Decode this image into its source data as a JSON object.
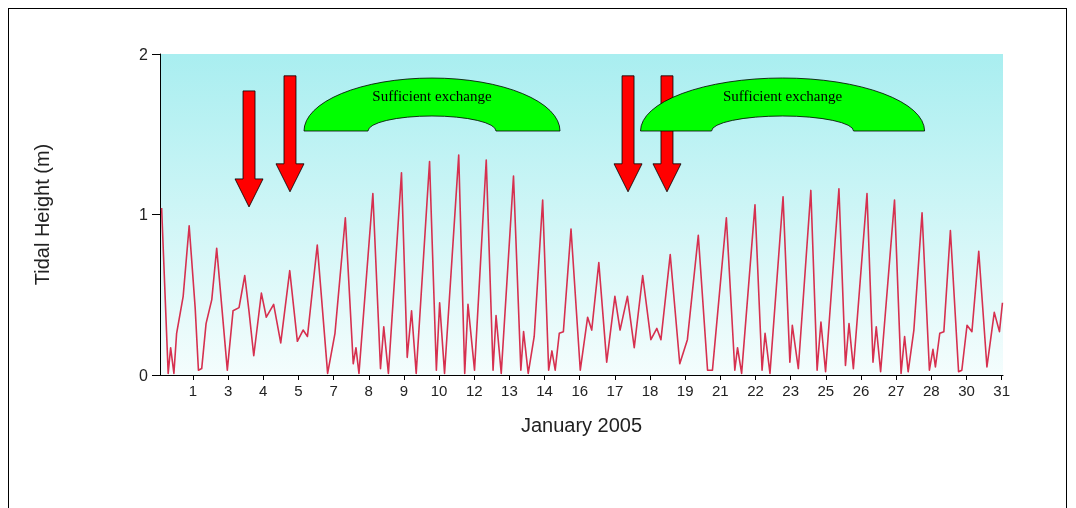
{
  "chart_data": {
    "type": "line",
    "xlabel": "January 2005",
    "ylabel": "Tidal Height (m)",
    "color": "#d6304f",
    "marker": "none",
    "grid": false,
    "xlim": [
      0.17,
      31.1
    ],
    "ylim": [
      0,
      2
    ],
    "yticks": [
      0,
      1,
      2
    ],
    "xticks": [
      {
        "value": 1.38,
        "label": "1"
      },
      {
        "value": 2.67,
        "label": "3"
      },
      {
        "value": 3.96,
        "label": "4"
      },
      {
        "value": 5.25,
        "label": "5"
      },
      {
        "value": 6.54,
        "label": "7"
      },
      {
        "value": 7.83,
        "label": "8"
      },
      {
        "value": 9.12,
        "label": "9"
      },
      {
        "value": 10.41,
        "label": "10"
      },
      {
        "value": 11.7,
        "label": "12"
      },
      {
        "value": 12.99,
        "label": "13"
      },
      {
        "value": 14.28,
        "label": "14"
      },
      {
        "value": 15.57,
        "label": "16"
      },
      {
        "value": 16.86,
        "label": "17"
      },
      {
        "value": 18.15,
        "label": "18"
      },
      {
        "value": 19.44,
        "label": "19"
      },
      {
        "value": 20.73,
        "label": "21"
      },
      {
        "value": 22.02,
        "label": "22"
      },
      {
        "value": 23.31,
        "label": "23"
      },
      {
        "value": 24.6,
        "label": "25"
      },
      {
        "value": 25.89,
        "label": "26"
      },
      {
        "value": 27.18,
        "label": "27"
      },
      {
        "value": 28.47,
        "label": "28"
      },
      {
        "value": 29.76,
        "label": "30"
      },
      {
        "value": 31.05,
        "label": "31"
      }
    ],
    "x": [
      0.23,
      0.47,
      0.56,
      0.68,
      0.78,
      1.02,
      1.24,
      1.46,
      1.58,
      1.7,
      1.86,
      2.07,
      2.25,
      2.44,
      2.64,
      2.85,
      3.07,
      3.28,
      3.44,
      3.61,
      3.89,
      4.07,
      4.34,
      4.6,
      4.93,
      5.21,
      5.42,
      5.58,
      5.94,
      6.32,
      6.59,
      6.97,
      7.26,
      7.36,
      7.47,
      7.98,
      8.26,
      8.38,
      8.55,
      9.03,
      9.24,
      9.4,
      9.57,
      10.06,
      10.31,
      10.43,
      10.61,
      11.13,
      11.35,
      11.47,
      11.71,
      12.14,
      12.39,
      12.5,
      12.69,
      13.14,
      13.41,
      13.51,
      13.68,
      13.9,
      14.21,
      14.43,
      14.55,
      14.67,
      14.82,
      14.97,
      15.25,
      15.59,
      15.86,
      16.01,
      16.27,
      16.56,
      16.86,
      17.05,
      17.32,
      17.57,
      17.88,
      18.18,
      18.4,
      18.55,
      18.89,
      19.24,
      19.52,
      19.92,
      20.26,
      20.44,
      20.95,
      21.26,
      21.36,
      21.51,
      22.0,
      22.26,
      22.37,
      22.55,
      23.03,
      23.28,
      23.37,
      23.59,
      24.05,
      24.28,
      24.42,
      24.59,
      25.08,
      25.32,
      25.45,
      25.61,
      26.11,
      26.33,
      26.45,
      26.61,
      27.12,
      27.36,
      27.49,
      27.62,
      27.83,
      28.13,
      28.4,
      28.53,
      28.62,
      28.78,
      28.93,
      29.17,
      29.47,
      29.59,
      29.78,
      29.96,
      30.21,
      30.51,
      30.78,
      30.97,
      31.08
    ],
    "values": [
      1.04,
      0.01,
      0.17,
      0.01,
      0.26,
      0.49,
      0.93,
      0.42,
      0.03,
      0.04,
      0.32,
      0.47,
      0.79,
      0.42,
      0.03,
      0.4,
      0.42,
      0.62,
      0.39,
      0.12,
      0.51,
      0.36,
      0.44,
      0.2,
      0.65,
      0.21,
      0.28,
      0.24,
      0.81,
      0.01,
      0.26,
      0.98,
      0.07,
      0.17,
      0.01,
      1.13,
      0.04,
      0.3,
      0.01,
      1.26,
      0.11,
      0.4,
      0.01,
      1.33,
      0.03,
      0.45,
      0.01,
      1.37,
      0.01,
      0.44,
      0.03,
      1.34,
      0.03,
      0.37,
      0.01,
      1.24,
      0.03,
      0.27,
      0.01,
      0.24,
      1.09,
      0.03,
      0.15,
      0.03,
      0.26,
      0.27,
      0.91,
      0.03,
      0.36,
      0.28,
      0.7,
      0.08,
      0.49,
      0.28,
      0.49,
      0.17,
      0.62,
      0.22,
      0.29,
      0.22,
      0.75,
      0.07,
      0.22,
      0.87,
      0.03,
      0.03,
      0.98,
      0.03,
      0.17,
      0.01,
      1.06,
      0.03,
      0.26,
      0.01,
      1.11,
      0.08,
      0.31,
      0.04,
      1.15,
      0.03,
      0.33,
      0.02,
      1.16,
      0.06,
      0.32,
      0.04,
      1.13,
      0.08,
      0.3,
      0.02,
      1.09,
      0.01,
      0.24,
      0.02,
      0.28,
      1.01,
      0.03,
      0.16,
      0.05,
      0.26,
      0.27,
      0.9,
      0.02,
      0.03,
      0.31,
      0.27,
      0.77,
      0.05,
      0.39,
      0.27,
      0.45
    ],
    "annotations": [
      "Sufficient exchange",
      "Sufficient exchange"
    ]
  }
}
